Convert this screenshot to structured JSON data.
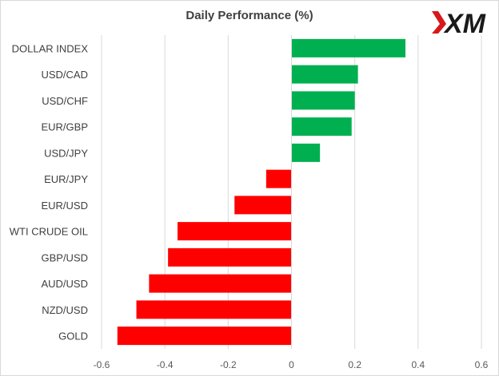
{
  "title": "Daily Performance (%)",
  "logo": {
    "text": "XM",
    "mark_color": "#d7191c",
    "text_color": "#1a1a1a"
  },
  "chart_data": {
    "type": "bar",
    "orientation": "horizontal",
    "title": "Daily Performance (%)",
    "categories": [
      "DOLLAR INDEX",
      "USD/CAD",
      "USD/CHF",
      "EUR/GBP",
      "USD/JPY",
      "EUR/JPY",
      "EUR/USD",
      "WTI CRUDE OIL",
      "GBP/USD",
      "AUD/USD",
      "NZD/USD",
      "GOLD"
    ],
    "values": [
      0.36,
      0.21,
      0.2,
      0.19,
      0.09,
      -0.08,
      -0.18,
      -0.36,
      -0.39,
      -0.45,
      -0.49,
      -0.55
    ],
    "xlim": [
      -0.6,
      0.6
    ],
    "xticks": [
      -0.6,
      -0.4,
      -0.2,
      0,
      0.2,
      0.4,
      0.6
    ],
    "xtick_labels": [
      "-0.6",
      "-0.4",
      "-0.2",
      "0",
      "0.2",
      "0.4",
      "0.6"
    ],
    "grid": true,
    "colors": {
      "positive": "#00b050",
      "negative": "#ff0000",
      "grid": "#d9d9d9"
    }
  }
}
